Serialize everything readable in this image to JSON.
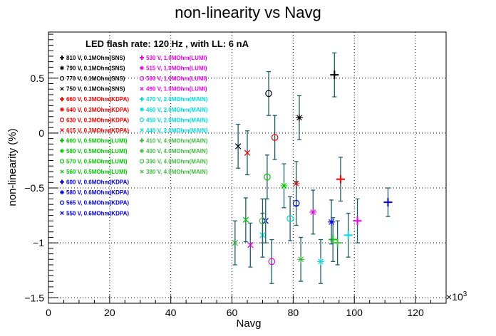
{
  "chart_data": {
    "type": "scatter",
    "title": "non-linearity vs Navg",
    "subtitle": "LED flash rate: 120 Hz , with LL: 6 nA",
    "xlabel": "Navg",
    "ylabel": "non-linearity (%)",
    "x_multiplier": "×10",
    "x_multiplier_exp": "3",
    "xlim": [
      0,
      130000
    ],
    "ylim": [
      -1.55,
      0.92
    ],
    "x_ticks": [
      {
        "v": 0,
        "label": "0"
      },
      {
        "v": 20000,
        "label": "20"
      },
      {
        "v": 40000,
        "label": "40"
      },
      {
        "v": 60000,
        "label": "60"
      },
      {
        "v": 80000,
        "label": "80"
      },
      {
        "v": 100000,
        "label": "100"
      },
      {
        "v": 120000,
        "label": "120"
      }
    ],
    "y_ticks": [
      {
        "v": -1.5,
        "label": "−1.5"
      },
      {
        "v": -1,
        "label": "−1"
      },
      {
        "v": -0.5,
        "label": "−0.5"
      },
      {
        "v": 0,
        "label": "0"
      },
      {
        "v": 0.5,
        "label": "0.5"
      }
    ],
    "grid": true,
    "legend_placement": "top-left",
    "series": [
      {
        "name": "810 V, 0.1MOhm(SNS)",
        "marker": "+",
        "color": "#000000",
        "points": [
          {
            "x": 93500,
            "y": 0.53,
            "err": 0.2
          }
        ]
      },
      {
        "name": "790 V, 0.1MOhm(SNS)",
        "marker": "*",
        "color": "#000000",
        "points": [
          {
            "x": 82000,
            "y": 0.14,
            "err": 0.2
          }
        ]
      },
      {
        "name": "770 V, 0.1MOhm(SNS)",
        "marker": "o",
        "color": "#000000",
        "points": [
          {
            "x": 72000,
            "y": 0.36,
            "err": 0.2
          }
        ]
      },
      {
        "name": "750 V, 0.1MOhm(SNS)",
        "marker": "x",
        "color": "#000000",
        "points": [
          {
            "x": 62000,
            "y": -0.12,
            "err": 0.2
          }
        ]
      },
      {
        "name": "660 V, 0.3MOhm(KDPA)",
        "marker": "+",
        "color": "#ff0000",
        "points": [
          {
            "x": 95500,
            "y": -0.42,
            "err": 0.2
          }
        ]
      },
      {
        "name": "640 V, 0.3MOhm(KDPA)",
        "marker": "*",
        "color": "#ff0000",
        "points": [
          {
            "x": 81000,
            "y": -0.46,
            "err": 0.2
          }
        ]
      },
      {
        "name": "630 V, 0.3MOhm(KDPA)",
        "marker": "o",
        "color": "#ff0000",
        "points": [
          {
            "x": 74000,
            "y": -0.04,
            "err": 0.2
          }
        ]
      },
      {
        "name": "615 V, 0.3MOhm(KDPA)",
        "marker": "x",
        "color": "#ff0000",
        "points": [
          {
            "x": 65000,
            "y": -0.18,
            "err": 0.2
          }
        ]
      },
      {
        "name": "600 V, 0.5MOhm(LUMI)",
        "marker": "+",
        "color": "#00cc00",
        "points": [
          {
            "x": 93000,
            "y": -0.97,
            "err": 0.2
          }
        ]
      },
      {
        "name": "580 V, 0.5MOhm(LUMI)",
        "marker": "*",
        "color": "#00cc00",
        "points": [
          {
            "x": 77000,
            "y": -0.48,
            "err": 0.2
          }
        ]
      },
      {
        "name": "570 V, 0.5MOhm(LUMI)",
        "marker": "o",
        "color": "#00cc00",
        "points": [
          {
            "x": 71500,
            "y": -0.4,
            "err": 0.2
          }
        ]
      },
      {
        "name": "560 V, 0.5MOhm(LUMI)",
        "marker": "x",
        "color": "#00cc00",
        "points": [
          {
            "x": 64500,
            "y": -0.79,
            "err": 0.2
          }
        ]
      },
      {
        "name": "600 V, 0.6MOhm(KDPA)",
        "marker": "+",
        "color": "#0000ee",
        "points": [
          {
            "x": 111000,
            "y": -0.63,
            "err": 0.13
          }
        ]
      },
      {
        "name": "580 V, 0.6MOhm(KDPA)",
        "marker": "*",
        "color": "#0000ee",
        "points": [
          {
            "x": 92500,
            "y": -0.81,
            "err": 0.2
          }
        ]
      },
      {
        "name": "565 V, 0.6MOhm(KDPA)",
        "marker": "o",
        "color": "#0000ee",
        "points": [
          {
            "x": 81000,
            "y": -0.64,
            "err": 0.2
          }
        ]
      },
      {
        "name": "550 V, 0.6MOhm(KDPA)",
        "marker": "x",
        "color": "#0000ee",
        "points": [
          {
            "x": 71000,
            "y": -0.8,
            "err": 0.2
          }
        ]
      },
      {
        "name": "530 V, 1.0MOhm(LUMI)",
        "marker": "+",
        "color": "#ee00ee",
        "points": [
          {
            "x": 101000,
            "y": -0.8,
            "err": 0.2
          }
        ]
      },
      {
        "name": "515 V, 1.0MOhm(LUMI)",
        "marker": "*",
        "color": "#ee00ee",
        "points": [
          {
            "x": 86500,
            "y": -0.72,
            "err": 0.2
          }
        ]
      },
      {
        "name": "500 V, 1.0MOhm(LUMI)",
        "marker": "o",
        "color": "#ee00ee",
        "points": [
          {
            "x": 73000,
            "y": -1.17,
            "err": 0.2
          }
        ]
      },
      {
        "name": "490 V, 1.0MOhm(LUMI)",
        "marker": "x",
        "color": "#ee00ee",
        "points": [
          {
            "x": 66000,
            "y": -1.02,
            "err": 0.2
          }
        ]
      },
      {
        "name": "470 V, 2.0MOhm(MAIN)",
        "marker": "+",
        "color": "#00dddd",
        "points": [
          {
            "x": 98000,
            "y": -0.93,
            "err": 0.2
          }
        ]
      },
      {
        "name": "460 V, 2.0MOhm(MAIN)",
        "marker": "*",
        "color": "#00dddd",
        "points": [
          {
            "x": 89000,
            "y": -1.17,
            "err": 0.2
          }
        ]
      },
      {
        "name": "450 V, 2.0MOhm(MAIN)",
        "marker": "o",
        "color": "#00dddd",
        "points": [
          {
            "x": 79000,
            "y": -0.78,
            "err": 0.2
          }
        ]
      },
      {
        "name": "440 V, 2.0MOhm(MAIN)",
        "marker": "x",
        "color": "#00dddd",
        "points": [
          {
            "x": 70000,
            "y": -0.93,
            "err": 0.2
          }
        ]
      },
      {
        "name": "410 V, 4.0MOhm(MAIN)",
        "marker": "+",
        "color": "#44bb44",
        "points": [
          {
            "x": 94500,
            "y": -1.0,
            "err": 0.2
          }
        ]
      },
      {
        "name": "400 V, 4.0MOhm(MAIN)",
        "marker": "*",
        "color": "#44bb44",
        "points": [
          {
            "x": 82500,
            "y": -1.15,
            "err": 0.2
          }
        ]
      },
      {
        "name": "390 V, 4.0MOhm(MAIN)",
        "marker": "o",
        "color": "#44bb44",
        "points": [
          {
            "x": 70000,
            "y": -0.8,
            "err": 0.2
          }
        ]
      },
      {
        "name": "380 V, 4.0MOhm(MAIN)",
        "marker": "x",
        "color": "#44bb44",
        "points": [
          {
            "x": 61000,
            "y": -1.0,
            "err": 0.2
          }
        ]
      }
    ]
  }
}
